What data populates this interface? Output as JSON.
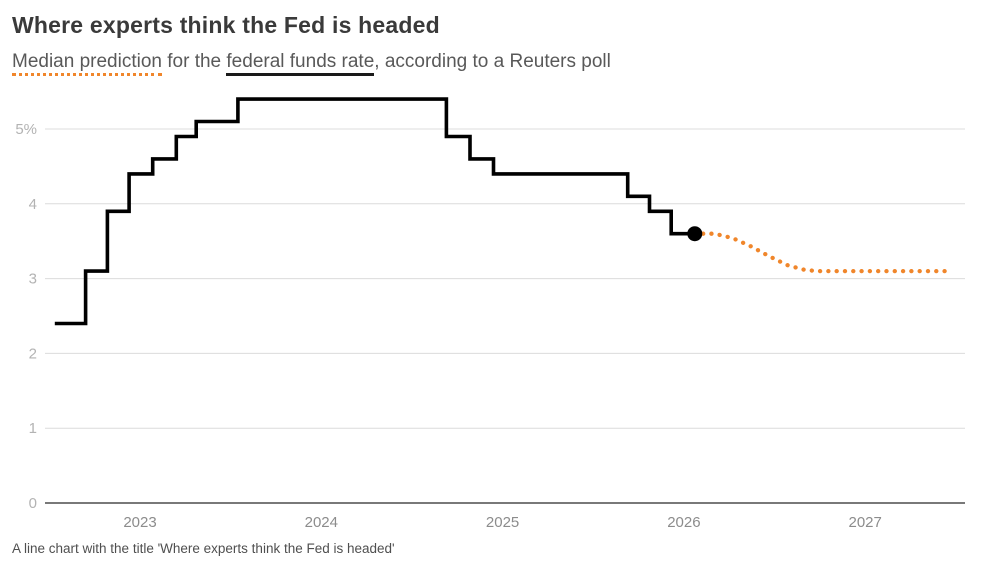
{
  "header": {
    "title": "Where experts think the Fed is headed",
    "subtitle": {
      "lead": "Median prediction",
      "mid": " for the ",
      "underlined": "federal funds rate",
      "tail": ", according to a Reuters poll"
    }
  },
  "caption": "A line chart with the title 'Where experts think the Fed is headed'",
  "colors": {
    "accent_orange": "#F0862B",
    "line_black": "#000000",
    "grid_gray": "#dcdcdc",
    "axis_gray": "#4d4d4d"
  },
  "chart_data": {
    "type": "line",
    "title": "Where experts think the Fed is headed",
    "subtitle": "Median prediction for the federal funds rate, according to a Reuters poll",
    "xlabel": "",
    "ylabel": "",
    "grid": "horizontal",
    "xlim": [
      2022.5,
      2027.55
    ],
    "ylim": [
      0,
      5.5
    ],
    "yticks": [
      {
        "value": 0,
        "label": "0"
      },
      {
        "value": 1,
        "label": "1"
      },
      {
        "value": 2,
        "label": "2"
      },
      {
        "value": 3,
        "label": "3"
      },
      {
        "value": 4,
        "label": "4"
      },
      {
        "value": 5,
        "label": "5%"
      }
    ],
    "xticks": [
      {
        "value": 2023,
        "label": "2023"
      },
      {
        "value": 2024,
        "label": "2024"
      },
      {
        "value": 2025,
        "label": "2025"
      },
      {
        "value": 2026,
        "label": "2026"
      },
      {
        "value": 2027,
        "label": "2027"
      }
    ],
    "series": [
      {
        "name": "federal-funds-rate-actual",
        "type": "step",
        "color": "#000000",
        "points": [
          {
            "x": 2022.53,
            "y": 2.4
          },
          {
            "x": 2022.7,
            "y": 3.1
          },
          {
            "x": 2022.82,
            "y": 3.9
          },
          {
            "x": 2022.94,
            "y": 4.4
          },
          {
            "x": 2023.07,
            "y": 4.6
          },
          {
            "x": 2023.2,
            "y": 4.9
          },
          {
            "x": 2023.31,
            "y": 5.1
          },
          {
            "x": 2023.54,
            "y": 5.4
          },
          {
            "x": 2024.69,
            "y": 4.9
          },
          {
            "x": 2024.82,
            "y": 4.6
          },
          {
            "x": 2024.95,
            "y": 4.4
          },
          {
            "x": 2025.69,
            "y": 4.1
          },
          {
            "x": 2025.81,
            "y": 3.9
          },
          {
            "x": 2025.93,
            "y": 3.6
          },
          {
            "x": 2026.06,
            "y": 3.6
          }
        ]
      },
      {
        "name": "median-prediction-forecast",
        "type": "dotted",
        "color": "#F0862B",
        "points": [
          {
            "x": 2026.06,
            "y": 3.6
          },
          {
            "x": 2026.17,
            "y": 3.6
          },
          {
            "x": 2026.27,
            "y": 3.54
          },
          {
            "x": 2026.37,
            "y": 3.43
          },
          {
            "x": 2026.47,
            "y": 3.3
          },
          {
            "x": 2026.57,
            "y": 3.18
          },
          {
            "x": 2026.66,
            "y": 3.12
          },
          {
            "x": 2026.73,
            "y": 3.1
          },
          {
            "x": 2027.47,
            "y": 3.1
          }
        ]
      }
    ],
    "marker": {
      "x": 2026.06,
      "y": 3.6,
      "series": "federal-funds-rate-actual"
    }
  }
}
